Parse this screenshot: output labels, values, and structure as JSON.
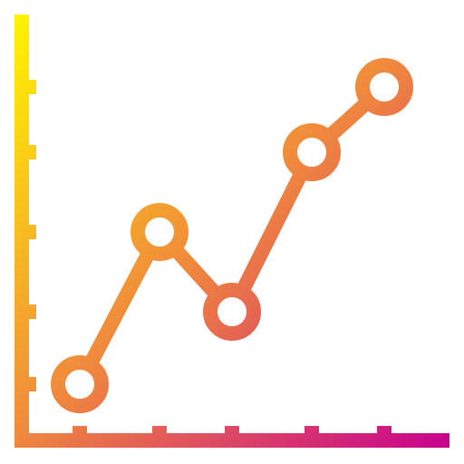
{
  "icon": {
    "name": "line-chart-icon",
    "style": "gradient outline",
    "colors": {
      "gradient_top_left": "#FFF200",
      "gradient_middle": "#F08A3C",
      "gradient_bottom_right": "#C8008F",
      "background": "#FFFFFF"
    },
    "relative_levels": [
      0.17,
      0.56,
      0.36,
      0.75,
      0.96
    ]
  }
}
